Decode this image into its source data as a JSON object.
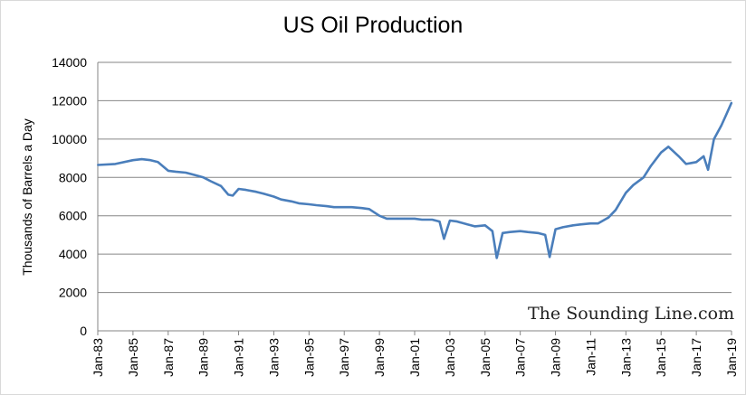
{
  "chart_data": {
    "type": "line",
    "title": "US Oil Production",
    "xlabel": "",
    "ylabel": "Thousands of Barrels a Day",
    "watermark": "The Sounding Line.com",
    "xlim": [
      "Jan-83",
      "Jan-19"
    ],
    "ylim": [
      0,
      14000
    ],
    "y_ticks": [
      0,
      2000,
      4000,
      6000,
      8000,
      10000,
      12000,
      14000
    ],
    "x_ticks": [
      "Jan-83",
      "Jan-85",
      "Jan-87",
      "Jan-89",
      "Jan-91",
      "Jan-93",
      "Jan-95",
      "Jan-97",
      "Jan-99",
      "Jan-01",
      "Jan-03",
      "Jan-05",
      "Jan-07",
      "Jan-09",
      "Jan-11",
      "Jan-13",
      "Jan-15",
      "Jan-17",
      "Jan-19"
    ],
    "grid": {
      "horizontal": true,
      "vertical": false
    },
    "legend": "none",
    "series_color": "#4a7ebb",
    "series": [
      {
        "name": "",
        "x": [
          "1983-01",
          "1984-01",
          "1985-01",
          "1985-07",
          "1986-01",
          "1986-06",
          "1987-01",
          "1987-06",
          "1988-01",
          "1988-06",
          "1989-01",
          "1989-06",
          "1990-01",
          "1990-06",
          "1990-09",
          "1991-01",
          "1991-06",
          "1992-01",
          "1992-06",
          "1993-01",
          "1993-06",
          "1994-01",
          "1994-06",
          "1995-01",
          "1995-06",
          "1996-01",
          "1996-06",
          "1997-01",
          "1997-06",
          "1998-01",
          "1998-06",
          "1999-01",
          "1999-06",
          "2000-01",
          "2000-06",
          "2001-01",
          "2001-06",
          "2002-01",
          "2002-06",
          "2002-09",
          "2003-01",
          "2003-06",
          "2004-01",
          "2004-06",
          "2005-01",
          "2005-06",
          "2005-09",
          "2006-01",
          "2006-06",
          "2007-01",
          "2007-06",
          "2008-01",
          "2008-06",
          "2008-09",
          "2009-01",
          "2009-06",
          "2010-01",
          "2010-06",
          "2011-01",
          "2011-06",
          "2012-01",
          "2012-06",
          "2013-01",
          "2013-06",
          "2014-01",
          "2014-06",
          "2015-01",
          "2015-06",
          "2016-01",
          "2016-06",
          "2017-01",
          "2017-06",
          "2017-09",
          "2018-01",
          "2018-06",
          "2018-09",
          "2019-01"
        ],
        "values": [
          8650,
          8700,
          8900,
          8950,
          8900,
          8800,
          8350,
          8300,
          8250,
          8150,
          8000,
          7800,
          7550,
          7100,
          7050,
          7400,
          7350,
          7250,
          7150,
          7000,
          6850,
          6750,
          6650,
          6600,
          6550,
          6500,
          6450,
          6450,
          6450,
          6400,
          6350,
          6000,
          5850,
          5850,
          5850,
          5850,
          5800,
          5800,
          5700,
          4800,
          5750,
          5700,
          5550,
          5450,
          5500,
          5200,
          3800,
          5100,
          5150,
          5200,
          5150,
          5100,
          5000,
          3850,
          5300,
          5400,
          5500,
          5550,
          5600,
          5600,
          5900,
          6300,
          7200,
          7600,
          8000,
          8600,
          9300,
          9600,
          9100,
          8700,
          8800,
          9100,
          8400,
          10000,
          10700,
          11200,
          11900
        ]
      }
    ]
  }
}
